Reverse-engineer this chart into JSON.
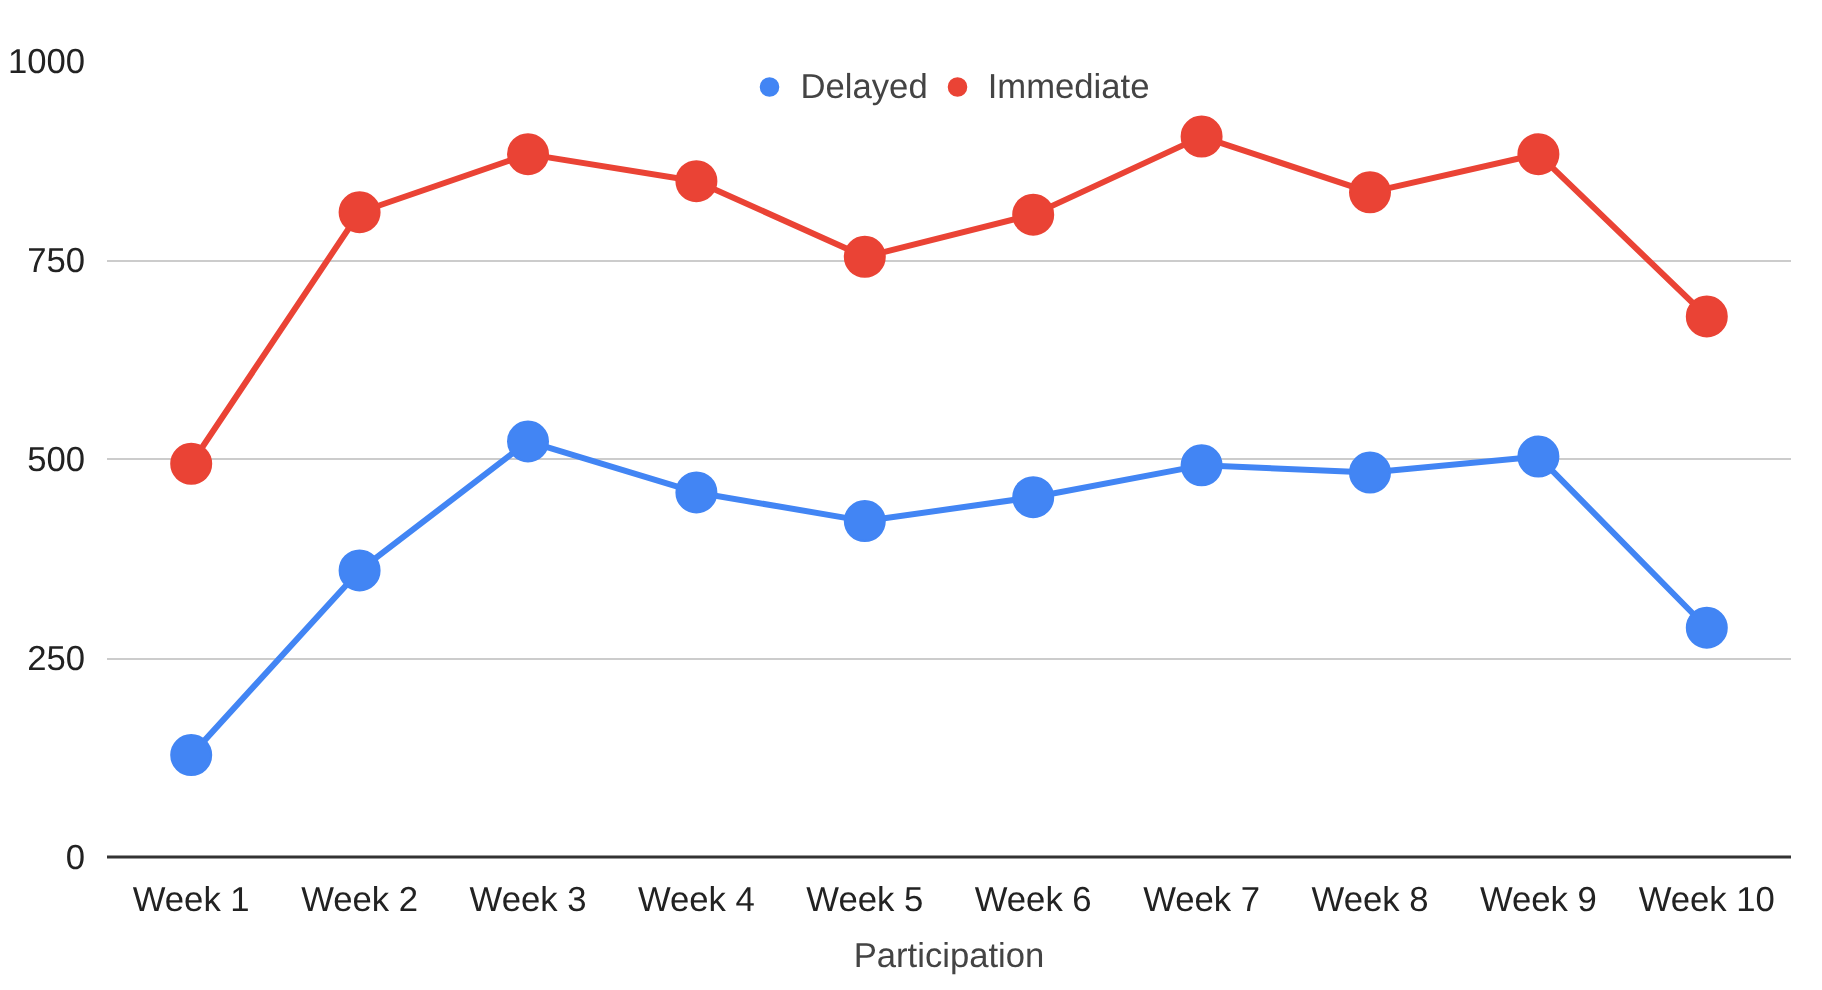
{
  "chart_data": {
    "type": "line",
    "xlabel": "Participation",
    "categories": [
      "Week 1",
      "Week 2",
      "Week 3",
      "Week 4",
      "Week 5",
      "Week 6",
      "Week 7",
      "Week 8",
      "Week 9",
      "Week 10"
    ],
    "series": [
      {
        "name": "Delayed",
        "color": "#4285f4",
        "values": [
          128,
          360,
          522,
          458,
          422,
          452,
          492,
          483,
          503,
          288
        ]
      },
      {
        "name": "Immediate",
        "color": "#ea4335",
        "values": [
          494,
          810,
          883,
          849,
          754,
          807,
          905,
          835,
          883,
          679
        ]
      }
    ],
    "ylim": [
      0,
      1000
    ],
    "yticks": [
      0,
      250,
      500,
      750,
      1000
    ],
    "grid": "y",
    "legend": "top",
    "marker": "circle",
    "line_style": "solid"
  }
}
